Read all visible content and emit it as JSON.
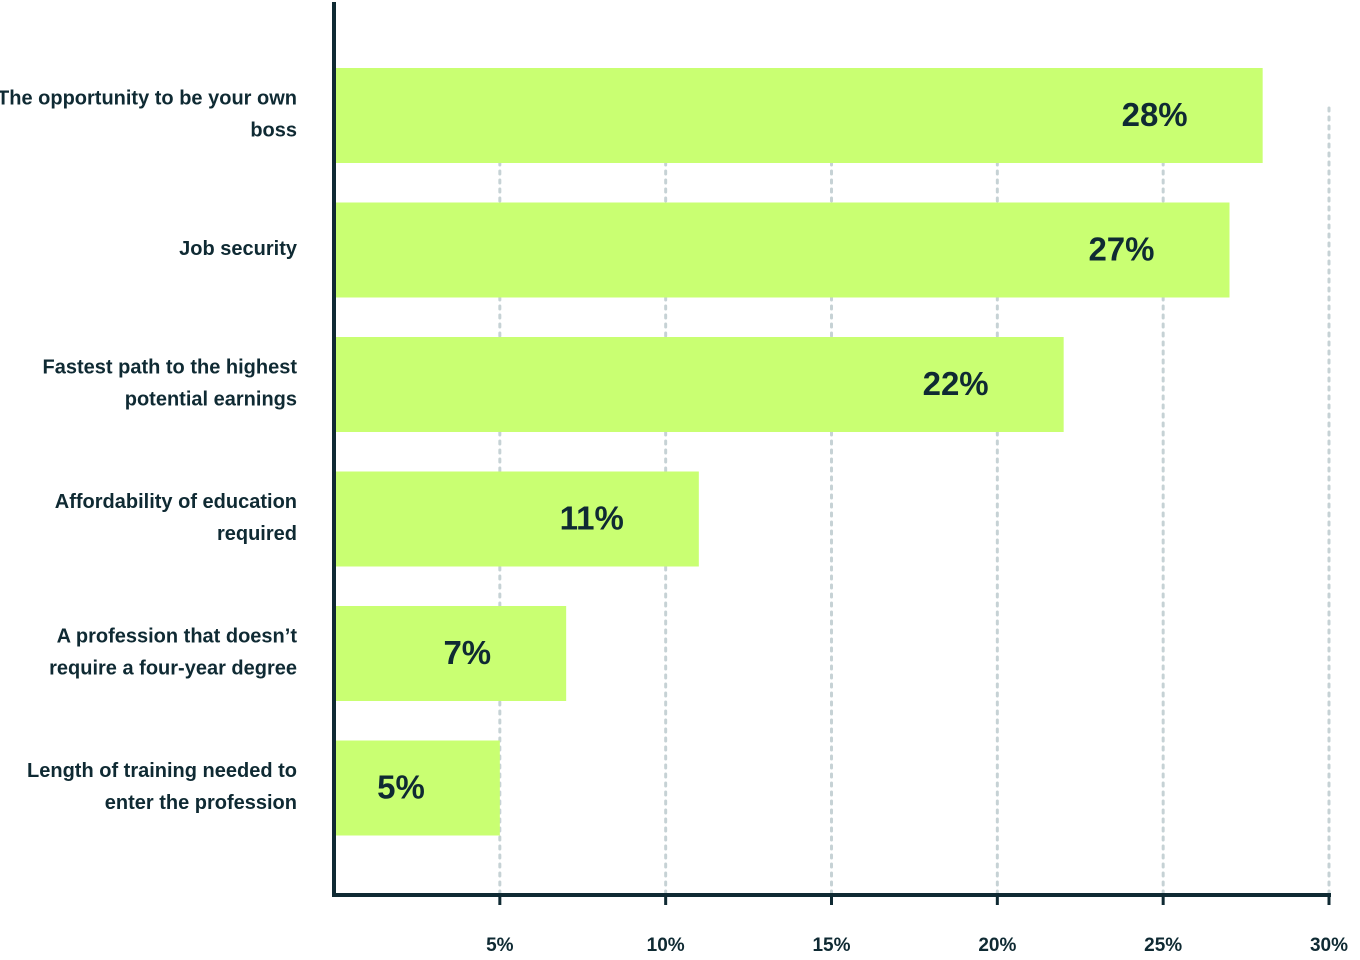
{
  "chart_data": {
    "type": "bar",
    "orientation": "horizontal",
    "categories": [
      "The opportunity to be your own boss",
      "Job security",
      "Fastest path to the highest potential earnings",
      "Affordability of education required",
      "A profession that doesn’t require a four-year degree",
      "Length of training needed to enter the profession"
    ],
    "values": [
      28,
      27,
      22,
      11,
      7,
      5
    ],
    "value_labels": [
      "28%",
      "27%",
      "22%",
      "11%",
      "7%",
      "5%"
    ],
    "color": "#c9ff72",
    "xlim": [
      0,
      30
    ],
    "xticks": [
      {
        "value": 5,
        "label": "5%"
      },
      {
        "value": 10,
        "label": "10%"
      },
      {
        "value": 15,
        "label": "15%"
      },
      {
        "value": 20,
        "label": "20%"
      },
      {
        "value": 25,
        "label": "25%"
      },
      {
        "value": 30,
        "label": "30%"
      }
    ],
    "grid": true
  }
}
